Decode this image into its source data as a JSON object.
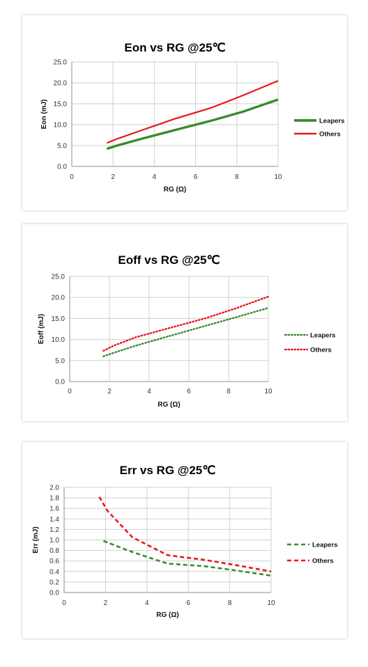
{
  "chart_data": [
    {
      "type": "line",
      "title": "Eon vs RG @25℃",
      "xlabel": "RG  (Ω)",
      "ylabel": "Eon (mJ)",
      "xlim": [
        0,
        10
      ],
      "ylim": [
        0,
        25
      ],
      "xticks": [
        "0",
        "2",
        "4",
        "6",
        "8",
        "10"
      ],
      "yticks": [
        "0.0",
        "5.0",
        "10.0",
        "15.0",
        "20.0",
        "25.0"
      ],
      "grid": true,
      "legend_position": "right",
      "series": [
        {
          "name": "Leapers",
          "color": "#3a8a2e",
          "style": "solid",
          "x": [
            1.7,
            2.2,
            3.3,
            5.0,
            6.8,
            8.3,
            10.0
          ],
          "y": [
            4.2,
            5.0,
            6.5,
            8.7,
            11.0,
            13.1,
            16.0
          ]
        },
        {
          "name": "Others",
          "color": "#e8161c",
          "style": "solid",
          "x": [
            1.7,
            2.2,
            3.3,
            5.0,
            6.8,
            8.3,
            10.0
          ],
          "y": [
            5.6,
            6.6,
            8.5,
            11.4,
            14.1,
            17.0,
            20.5
          ]
        }
      ]
    },
    {
      "type": "line",
      "title": "Eoff  vs RG @25℃",
      "xlabel": "RG  (Ω)",
      "ylabel": "Eoff (mJ)",
      "xlim": [
        0,
        10
      ],
      "ylim": [
        0,
        25
      ],
      "xticks": [
        "0",
        "2",
        "4",
        "6",
        "8",
        "10"
      ],
      "yticks": [
        "0.0",
        "5.0",
        "10.0",
        "15.0",
        "20.0",
        "25.0"
      ],
      "grid": true,
      "legend_position": "right",
      "series": [
        {
          "name": "Leapers",
          "color": "#3a8a2e",
          "style": "dotted",
          "x": [
            1.7,
            2.2,
            3.3,
            5.0,
            6.8,
            8.3,
            10.0
          ],
          "y": [
            6.0,
            6.8,
            8.5,
            10.8,
            13.2,
            15.2,
            17.5
          ]
        },
        {
          "name": "Others",
          "color": "#e8161c",
          "style": "dotted",
          "x": [
            1.7,
            2.2,
            3.3,
            5.0,
            6.8,
            8.3,
            10.0
          ],
          "y": [
            7.3,
            8.5,
            10.5,
            12.7,
            15.0,
            17.3,
            20.2
          ]
        }
      ]
    },
    {
      "type": "line",
      "title": "Err vs RG @25℃",
      "xlabel": "RG  (Ω)",
      "ylabel": "Err (mJ)",
      "xlim": [
        0,
        10
      ],
      "ylim": [
        0,
        2.0
      ],
      "xticks": [
        "0",
        "2",
        "4",
        "6",
        "8",
        "10"
      ],
      "yticks": [
        "0.0",
        "0.2",
        "0.4",
        "0.6",
        "0.8",
        "1.0",
        "1.2",
        "1.4",
        "1.6",
        "1.8",
        "2.0"
      ],
      "grid": true,
      "legend_position": "right",
      "series": [
        {
          "name": "Leapers",
          "color": "#3a8a2e",
          "style": "dashed",
          "x": [
            1.9,
            3.3,
            5.0,
            6.8,
            8.3,
            10.0
          ],
          "y": [
            0.98,
            0.77,
            0.55,
            0.5,
            0.42,
            0.32
          ]
        },
        {
          "name": "Others",
          "color": "#e8161c",
          "style": "dashed",
          "x": [
            1.7,
            2.1,
            3.3,
            5.0,
            6.8,
            8.3,
            10.0
          ],
          "y": [
            1.82,
            1.55,
            1.05,
            0.71,
            0.62,
            0.52,
            0.4
          ]
        }
      ]
    }
  ]
}
